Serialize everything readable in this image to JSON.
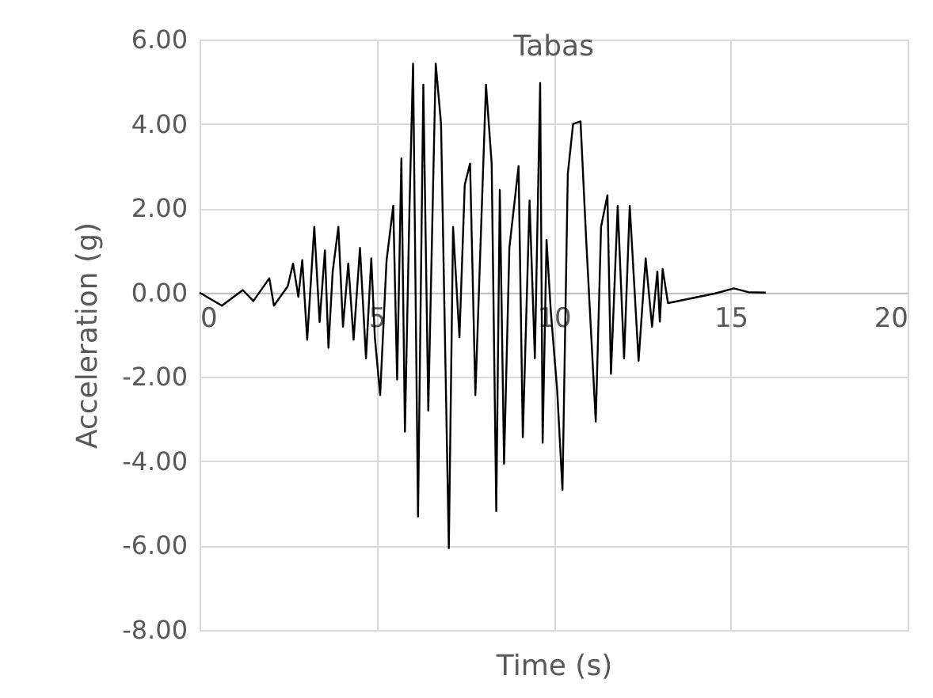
{
  "chart_data": {
    "type": "line",
    "title": "Tabas",
    "xlabel": "Time (s)",
    "ylabel": "Acceleration (g)",
    "xlim": [
      0,
      20
    ],
    "xticks": [
      0,
      5,
      10,
      15,
      20
    ],
    "ylim": [
      -8,
      6
    ],
    "yticks": [
      {
        "value": -8,
        "label": "-8.00"
      },
      {
        "value": -6,
        "label": "-6.00"
      },
      {
        "value": -4,
        "label": "-4.00"
      },
      {
        "value": -2,
        "label": "-2.00"
      },
      {
        "value": 0,
        "label": "0.00"
      },
      {
        "value": 2,
        "label": "2.00"
      },
      {
        "value": 4,
        "label": "4.00"
      },
      {
        "value": 6,
        "label": "6.00"
      }
    ],
    "grid": true,
    "line_style": "solid",
    "marker": "none",
    "series": [
      {
        "color": "#000000",
        "x": [
          0,
          0.63,
          1.22,
          1.52,
          1.97,
          2.1,
          2.49,
          2.64,
          2.79,
          2.9,
          3.04,
          3.24,
          3.39,
          3.54,
          3.64,
          3.76,
          3.92,
          4.05,
          4.2,
          4.35,
          4.53,
          4.7,
          4.85,
          4.95,
          5.1,
          5.28,
          5.47,
          5.58,
          5.7,
          5.8,
          5.93,
          6.03,
          6.17,
          6.32,
          6.46,
          6.67,
          6.82,
          7.04,
          7.16,
          7.34,
          7.49,
          7.64,
          7.79,
          8.09,
          8.25,
          8.38,
          8.48,
          8.6,
          8.75,
          9.01,
          9.13,
          9.32,
          9.47,
          9.62,
          9.69,
          9.8,
          9.92,
          10.1,
          10.25,
          10.4,
          10.55,
          10.76,
          10.92,
          11.19,
          11.34,
          11.52,
          11.62,
          11.81,
          11.99,
          12.15,
          12.4,
          12.6,
          12.78,
          12.93,
          13.0,
          13.08,
          13.23,
          14.57,
          15.09,
          15.5,
          15.99
        ],
        "values": [
          0,
          -0.31,
          0.06,
          -0.2,
          0.34,
          -0.31,
          0.15,
          0.69,
          -0.1,
          0.77,
          -1.12,
          1.56,
          -0.7,
          1.0,
          -1.31,
          0.5,
          1.56,
          -0.81,
          0.69,
          -1.12,
          1.06,
          -1.56,
          0.81,
          -1.06,
          -2.43,
          0.75,
          2.06,
          -2.06,
          3.18,
          -3.3,
          2.06,
          5.43,
          -5.31,
          4.93,
          -2.8,
          5.43,
          4.0,
          -6.06,
          1.56,
          -1.06,
          2.56,
          3.06,
          -2.43,
          4.93,
          3.06,
          -5.18,
          2.43,
          -4.06,
          1.06,
          3.0,
          -3.43,
          2.18,
          -1.56,
          4.97,
          -3.56,
          1.25,
          -0.44,
          -2.31,
          -4.68,
          2.81,
          4.0,
          4.06,
          1.25,
          -3.06,
          1.56,
          2.31,
          -1.93,
          2.06,
          -1.56,
          2.06,
          -1.62,
          0.81,
          -0.81,
          0.5,
          -0.69,
          0.56,
          -0.25,
          -0.02,
          0.1,
          0.01,
          0
        ]
      }
    ]
  }
}
